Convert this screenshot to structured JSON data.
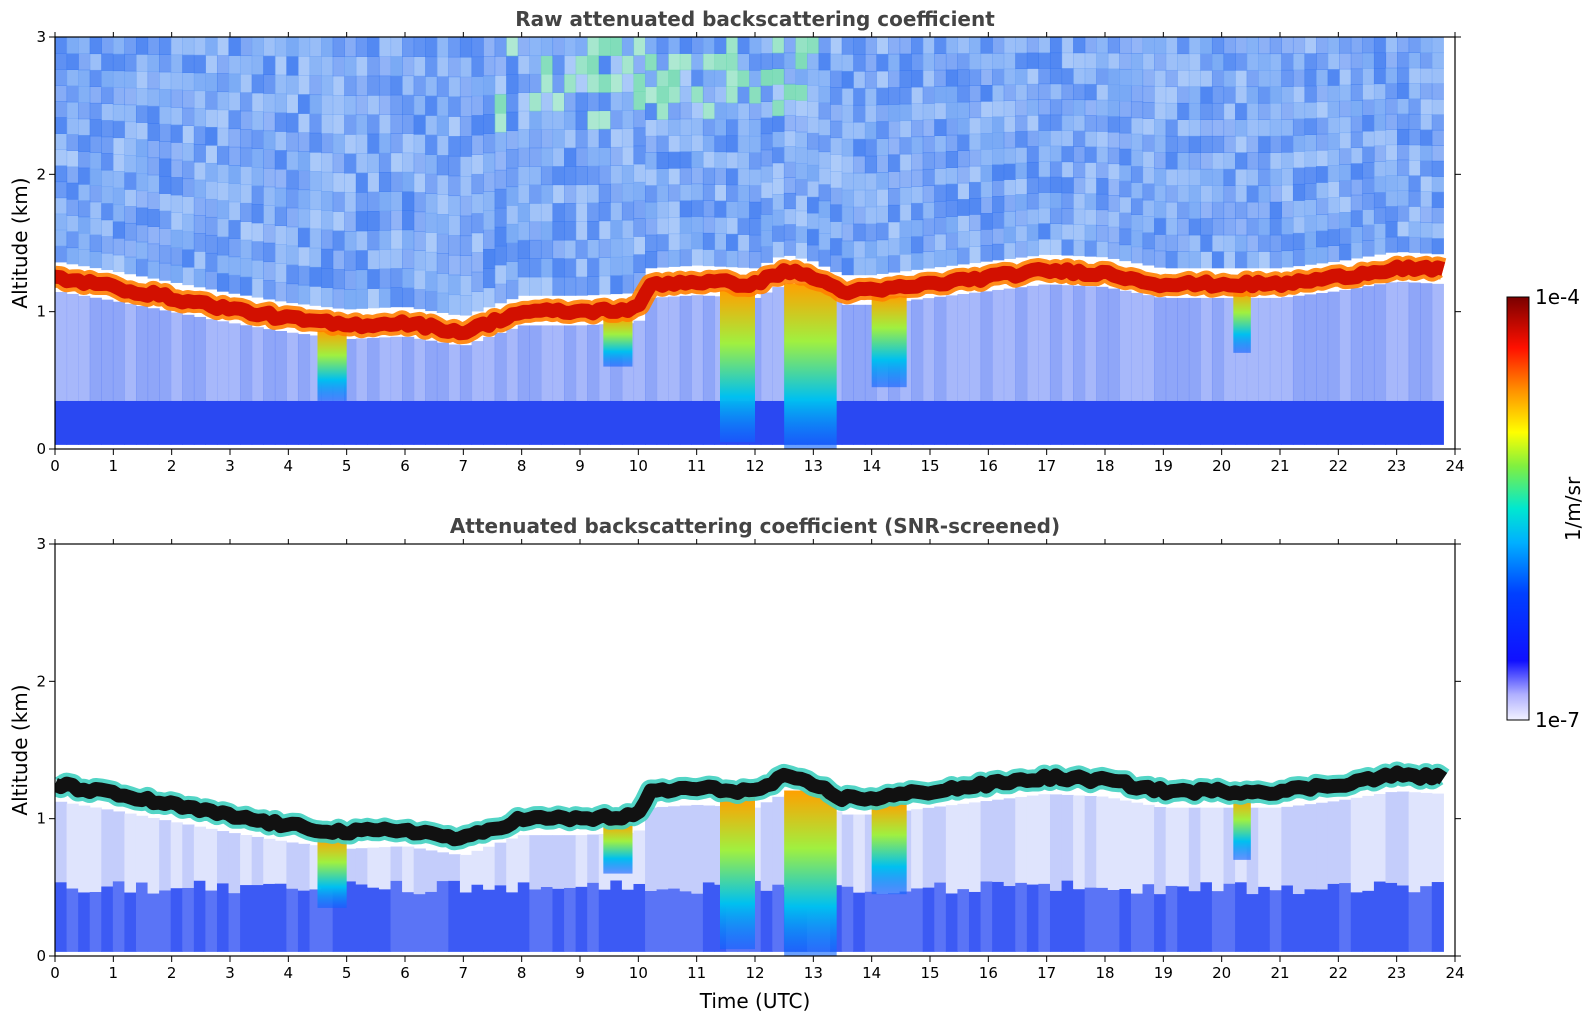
{
  "chart_data": [
    {
      "type": "heatmap",
      "title": "Raw attenuated backscattering coefficient",
      "xlabel": "",
      "ylabel": "Altitude (km)",
      "xlim": [
        0,
        24
      ],
      "ylim": [
        0,
        3
      ],
      "xticks": [
        "0",
        "1",
        "2",
        "3",
        "4",
        "5",
        "6",
        "7",
        "8",
        "9",
        "10",
        "11",
        "12",
        "13",
        "14",
        "15",
        "16",
        "17",
        "18",
        "19",
        "20",
        "21",
        "22",
        "23",
        "24"
      ],
      "yticks": [
        "0",
        "1",
        "2",
        "3"
      ],
      "cloud_top_km": [
        [
          0,
          1.25
        ],
        [
          1,
          1.18
        ],
        [
          2,
          1.1
        ],
        [
          3,
          1.02
        ],
        [
          4,
          0.95
        ],
        [
          5,
          0.9
        ],
        [
          6,
          0.92
        ],
        [
          7,
          0.85
        ],
        [
          8,
          1.0
        ],
        [
          9,
          1.0
        ],
        [
          10,
          1.02
        ],
        [
          10.2,
          1.2
        ],
        [
          11,
          1.22
        ],
        [
          12,
          1.2
        ],
        [
          12.5,
          1.3
        ],
        [
          13,
          1.25
        ],
        [
          13.5,
          1.15
        ],
        [
          14,
          1.15
        ],
        [
          15,
          1.2
        ],
        [
          16,
          1.25
        ],
        [
          17,
          1.3
        ],
        [
          18,
          1.28
        ],
        [
          19,
          1.2
        ],
        [
          20,
          1.2
        ],
        [
          21,
          1.2
        ],
        [
          22,
          1.25
        ],
        [
          23,
          1.32
        ],
        [
          23.8,
          1.3
        ]
      ],
      "precipitation_shafts": [
        {
          "start": 4.5,
          "end": 5.0,
          "bottom_km": 0.35
        },
        {
          "start": 9.4,
          "end": 9.9,
          "bottom_km": 0.6
        },
        {
          "start": 11.4,
          "end": 12.0,
          "bottom_km": 0.05
        },
        {
          "start": 12.5,
          "end": 13.4,
          "bottom_km": 0.0
        },
        {
          "start": 14.0,
          "end": 14.6,
          "bottom_km": 0.45
        },
        {
          "start": 20.2,
          "end": 20.5,
          "bottom_km": 0.7
        }
      ]
    },
    {
      "type": "heatmap",
      "title": "Attenuated backscattering coefficient (SNR-screened)",
      "xlabel": "Time (UTC)",
      "ylabel": "Altitude (km)",
      "xlim": [
        0,
        24
      ],
      "ylim": [
        0,
        3
      ],
      "xticks": [
        "0",
        "1",
        "2",
        "3",
        "4",
        "5",
        "6",
        "7",
        "8",
        "9",
        "10",
        "11",
        "12",
        "13",
        "14",
        "15",
        "16",
        "17",
        "18",
        "19",
        "20",
        "21",
        "22",
        "23",
        "24"
      ],
      "yticks": [
        "0",
        "1",
        "2",
        "3"
      ]
    }
  ],
  "colorbar": {
    "label": "1/m/sr",
    "max_label": "1e-4",
    "min_label": "1e-7",
    "colors": [
      "#f2f2ff",
      "#c8c8ff",
      "#9090ff",
      "#3030ff",
      "#0000ff",
      "#0050ff",
      "#00a0ff",
      "#00e0e0",
      "#40f080",
      "#a0f040",
      "#ffff00",
      "#ffc000",
      "#ff6000",
      "#ff0000",
      "#c00000",
      "#800000"
    ]
  }
}
